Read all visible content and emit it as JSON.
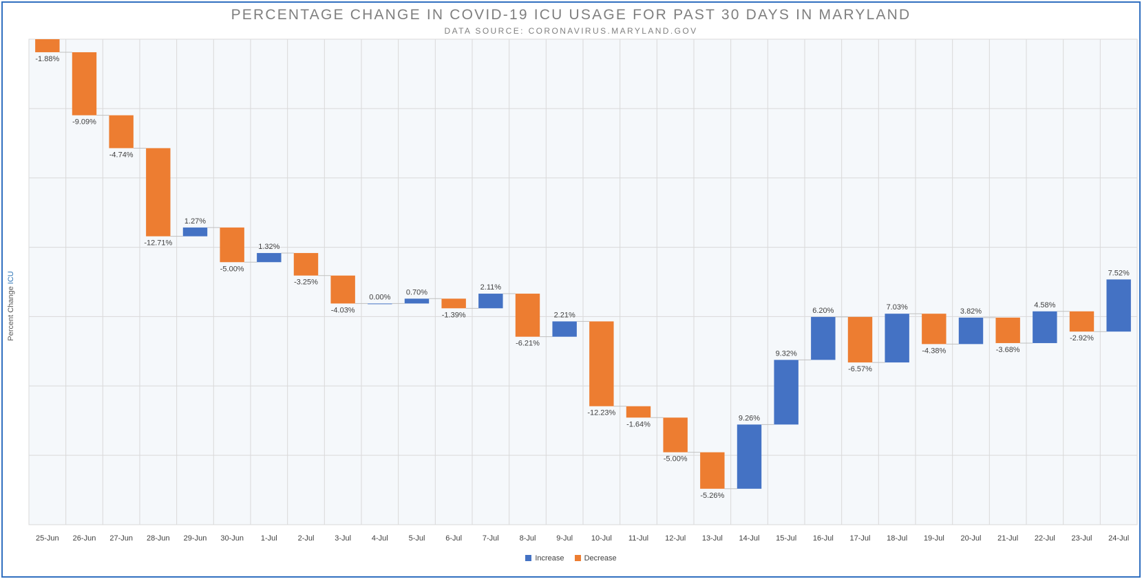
{
  "chart_data": {
    "type": "bar",
    "subtype": "waterfall",
    "title": "PERCENTAGE CHANGE IN COVID-19 ICU USAGE FOR PAST 30 DAYS IN MARYLAND",
    "subtitle": "DATA SOURCE: CORONAVIRUS.MARYLAND.GOV",
    "ylabel_prefix": "Percent Change",
    "ylabel_highlight": "ICU",
    "categories": [
      "25-Jun",
      "26-Jun",
      "27-Jun",
      "28-Jun",
      "29-Jun",
      "30-Jun",
      "1-Jul",
      "2-Jul",
      "3-Jul",
      "4-Jul",
      "5-Jul",
      "6-Jul",
      "7-Jul",
      "8-Jul",
      "9-Jul",
      "10-Jul",
      "11-Jul",
      "12-Jul",
      "13-Jul",
      "14-Jul",
      "15-Jul",
      "16-Jul",
      "17-Jul",
      "18-Jul",
      "19-Jul",
      "20-Jul",
      "21-Jul",
      "22-Jul",
      "23-Jul",
      "24-Jul"
    ],
    "values": [
      -1.88,
      -9.09,
      -4.74,
      -12.71,
      1.27,
      -5.0,
      1.32,
      -3.25,
      -4.03,
      0.0,
      0.7,
      -1.39,
      2.11,
      -6.21,
      2.21,
      -12.23,
      -1.64,
      -5.0,
      -5.26,
      9.26,
      9.32,
      6.2,
      -6.57,
      7.03,
      -4.38,
      3.82,
      -3.68,
      4.58,
      -2.92,
      7.52
    ],
    "data_labels": [
      "-1.88%",
      "-9.09%",
      "-4.74%",
      "-12.71%",
      "1.27%",
      "-5.00%",
      "1.32%",
      "-3.25%",
      "-4.03%",
      "0.00%",
      "0.70%",
      "-1.39%",
      "2.11%",
      "-6.21%",
      "2.21%",
      "-12.23%",
      "-1.64%",
      "-5.00%",
      "-5.26%",
      "9.26%",
      "9.32%",
      "6.20%",
      "-6.57%",
      "7.03%",
      "-4.38%",
      "3.82%",
      "-3.68%",
      "4.58%",
      "-2.92%",
      "7.52%"
    ],
    "series": [
      {
        "name": "Increase",
        "color": "#4472c4"
      },
      {
        "name": "Decrease",
        "color": "#ed7d31"
      }
    ],
    "ylim": [
      -70,
      0
    ],
    "grid": true,
    "legend": "bottom-center",
    "connector_color": "#bfbfbf",
    "plot_background": "#f5f8fb"
  }
}
